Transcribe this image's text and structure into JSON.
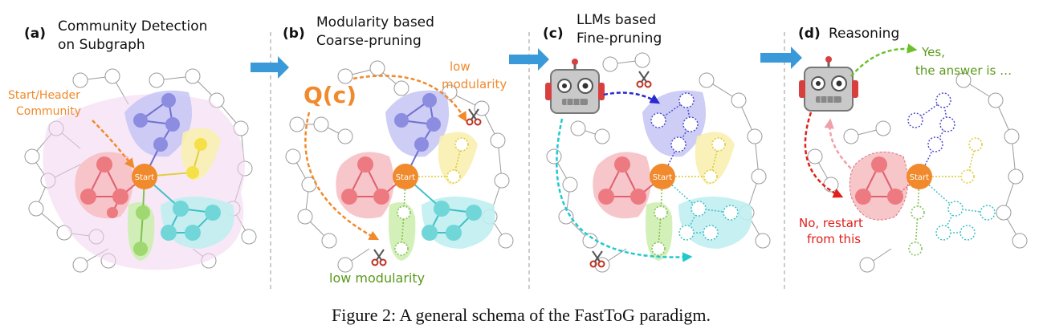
{
  "panels": [
    {
      "letter": "(a)",
      "title_line1": "Community Detection",
      "title_line2": "on Subgraph"
    },
    {
      "letter": "(b)",
      "title_line1": "Modularity based",
      "title_line2": "Coarse-pruning"
    },
    {
      "letter": "(c)",
      "title_line1": "LLMs based",
      "title_line2": "Fine-pruning"
    },
    {
      "letter": "(d)",
      "title_line1": "Reasoning",
      "title_line2": ""
    }
  ],
  "annotations": {
    "start_header_line1": "Start/Header",
    "start_header_line2": "Community",
    "start_node": "Start",
    "qc": "Q(c)",
    "low_modularity_top_line1": "low",
    "low_modularity_top_line2": "modularity",
    "low_modularity_bottom": "low modularity",
    "yes_line1": "Yes,",
    "yes_line2": "the answer is …",
    "no_line1": "No, restart",
    "no_line2": "from this"
  },
  "caption": "Figure 2: A general schema of the FastToG paradigm.",
  "colors": {
    "arrow_blue": "#3a9ad9",
    "orange": "#f08a2c",
    "purple": "#8c8ce0",
    "yellow": "#f5e048",
    "red": "#ec7a80",
    "green": "#9fd870",
    "cyan": "#70d6d8",
    "dark_blue": "#2a2ad0",
    "text_green": "#5a9a1a",
    "text_red": "#e0201a",
    "gray_node": "#a8a8a8"
  },
  "icons": [
    "right-arrow-icon",
    "scissors-icon",
    "robot-icon"
  ]
}
